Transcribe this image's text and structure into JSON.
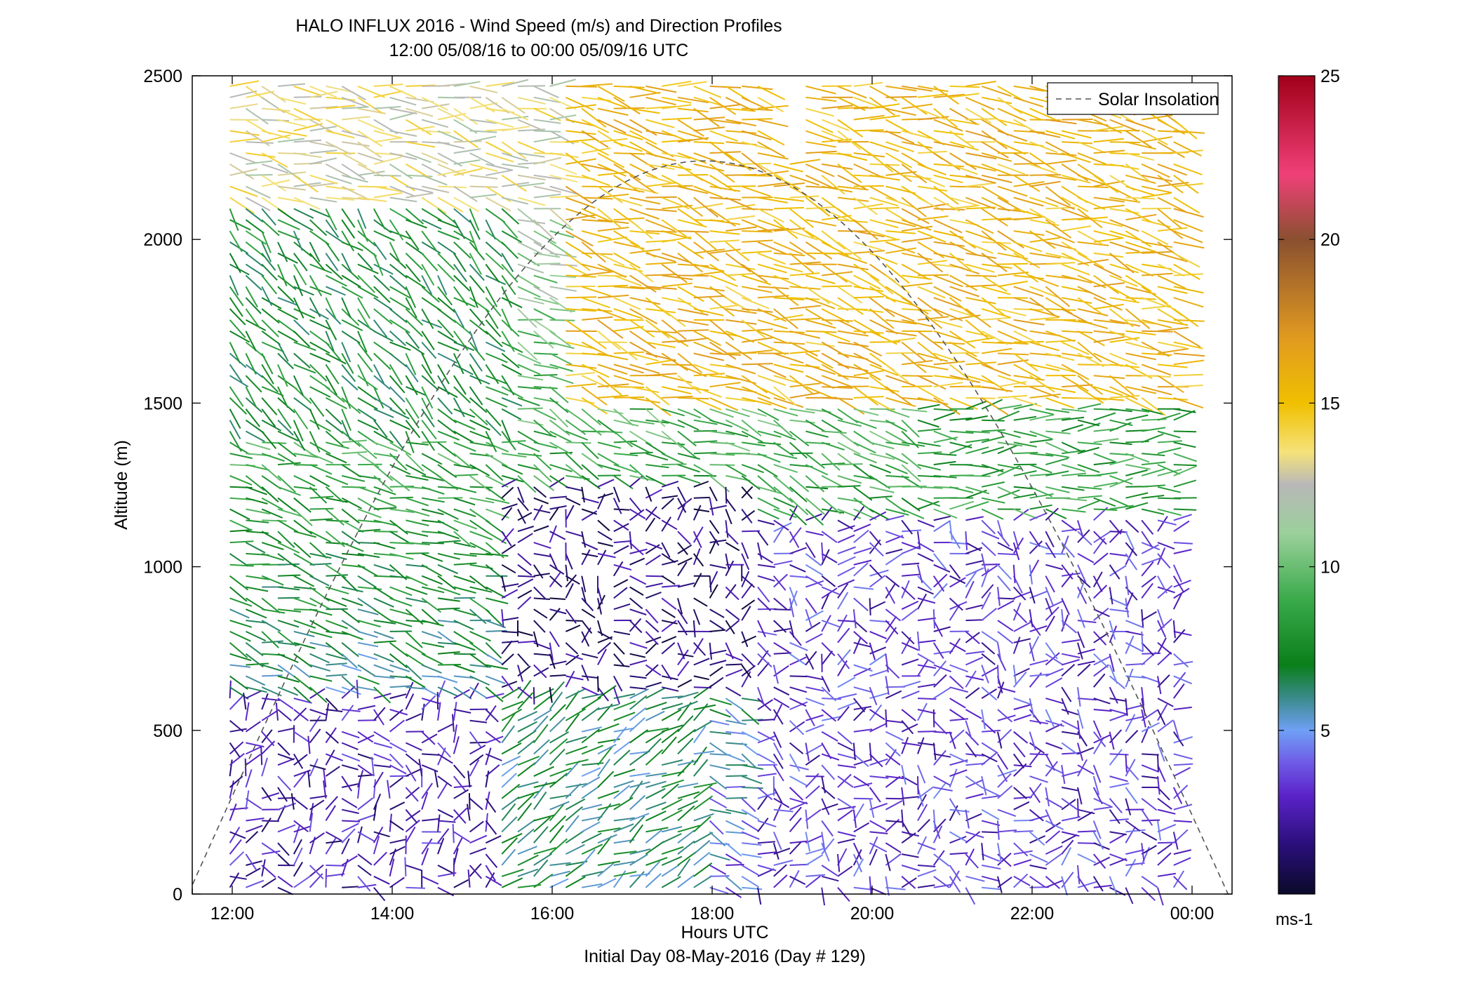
{
  "chart_data": {
    "type": "wind-barb-profile",
    "title": "HALO INFLUX 2016 - Wind Speed (m/s) and Direction Profiles",
    "subtitle": "12:00 05/08/16 to 00:00 05/09/16  UTC",
    "xlabel": "Hours UTC",
    "xlabel2": "Initial Day 08-May-2016 (Day # 129)",
    "ylabel": "Altitude (m)",
    "xlim_hours": [
      11.5,
      24.5
    ],
    "ylim": [
      0,
      2500
    ],
    "x_ticks": [
      {
        "value": 12,
        "label": "12:00"
      },
      {
        "value": 14,
        "label": "14:00"
      },
      {
        "value": 16,
        "label": "16:00"
      },
      {
        "value": 18,
        "label": "18:00"
      },
      {
        "value": 20,
        "label": "20:00"
      },
      {
        "value": 22,
        "label": "22:00"
      },
      {
        "value": 24,
        "label": "00:00"
      }
    ],
    "y_ticks": [
      {
        "value": 0,
        "label": "0"
      },
      {
        "value": 500,
        "label": "500"
      },
      {
        "value": 1000,
        "label": "1000"
      },
      {
        "value": 1500,
        "label": "1500"
      },
      {
        "value": 2000,
        "label": "2000"
      },
      {
        "value": 2500,
        "label": "2500"
      }
    ],
    "legend": {
      "placement": "top-right",
      "entries": [
        {
          "label": "Solar Insolation",
          "style": "dashed",
          "color": "#555555"
        }
      ]
    },
    "colorbar": {
      "range": [
        0,
        25
      ],
      "ticks": [
        {
          "value": 5,
          "label": "5"
        },
        {
          "value": 10,
          "label": "10"
        },
        {
          "value": 15,
          "label": "15"
        },
        {
          "value": 20,
          "label": "20"
        },
        {
          "value": 25,
          "label": "25"
        }
      ],
      "unit_label": "ms-1",
      "stops": [
        {
          "v": 0,
          "c": "#0a0a2a"
        },
        {
          "v": 1.5,
          "c": "#2a0f7a"
        },
        {
          "v": 3,
          "c": "#5a22c8"
        },
        {
          "v": 4,
          "c": "#6f5ae6"
        },
        {
          "v": 5,
          "c": "#6fa0f5"
        },
        {
          "v": 6,
          "c": "#3a8a8a"
        },
        {
          "v": 7,
          "c": "#0a7f1a"
        },
        {
          "v": 9,
          "c": "#3aaa4a"
        },
        {
          "v": 11,
          "c": "#9ad09a"
        },
        {
          "v": 12.5,
          "c": "#b8b8b8"
        },
        {
          "v": 13.5,
          "c": "#f5e27a"
        },
        {
          "v": 15,
          "c": "#f0c000"
        },
        {
          "v": 17,
          "c": "#e09a20"
        },
        {
          "v": 20,
          "c": "#8a5030"
        },
        {
          "v": 22,
          "c": "#f04078"
        },
        {
          "v": 25,
          "c": "#a00018"
        }
      ]
    },
    "solar_insolation": {
      "rise_hour": 11.45,
      "set_hour": 24.45,
      "peak_hour": 17.9,
      "peak_altitude": 2240
    },
    "speed_regimes": [
      {
        "h0": 0,
        "h1": 600,
        "t0": 11.9,
        "t1": 15.2,
        "speed": 2.5,
        "dir": 250
      },
      {
        "h0": 0,
        "h1": 650,
        "t0": 15.2,
        "t1": 17.8,
        "speed": 6.5,
        "dir": 240
      },
      {
        "h0": 600,
        "h1": 1250,
        "t0": 15.3,
        "t1": 18.5,
        "speed": 1.5,
        "dir": 280
      },
      {
        "h0": 0,
        "h1": 1150,
        "t0": 18.5,
        "t1": 23.8,
        "speed": 3.2,
        "dir": 280
      },
      {
        "h0": 1150,
        "h1": 1500,
        "t0": 20.5,
        "t1": 23.8,
        "speed": 8.5,
        "dir": 270
      },
      {
        "h0": 1500,
        "h1": 2500,
        "t0": 16.0,
        "t1": 23.8,
        "speed": 15.5,
        "dir": 285
      },
      {
        "h0": 1400,
        "h1": 2100,
        "t0": 11.9,
        "t1": 15.5,
        "speed": 7.5,
        "dir": 315
      },
      {
        "h0": 2100,
        "h1": 2500,
        "t0": 11.9,
        "t1": 16.0,
        "speed": 13.0,
        "dir": 280
      }
    ],
    "data_gaps": [
      {
        "t0": 18.65,
        "t1": 19.1,
        "h0": 2250,
        "h1": 2500
      }
    ]
  }
}
